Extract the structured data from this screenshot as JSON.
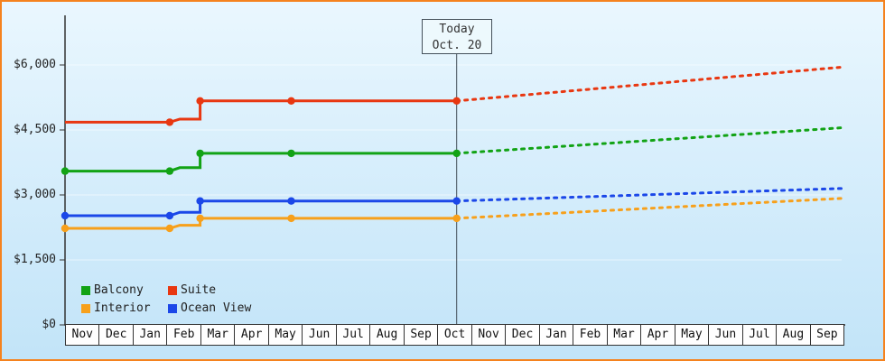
{
  "chart_data": {
    "type": "line",
    "title": "",
    "xlabel": "",
    "ylabel": "",
    "grid": true,
    "legend_position": "bottom-left-inside",
    "y_ticks": [
      0,
      1500,
      3000,
      4500,
      6000
    ],
    "y_tick_labels": [
      "$0",
      "$1,500",
      "$3,000",
      "$4,500",
      "$6,000"
    ],
    "ylim": [
      0,
      6000
    ],
    "x_months": [
      "Nov",
      "Dec",
      "Jan",
      "Feb",
      "Mar",
      "Apr",
      "May",
      "Jun",
      "Jul",
      "Aug",
      "Sep",
      "Oct",
      "Nov",
      "Dec",
      "Jan",
      "Feb",
      "Mar",
      "Apr",
      "May",
      "Jun",
      "Jul",
      "Aug",
      "Sep"
    ],
    "today": {
      "line1": "Today",
      "line2": "Oct. 20",
      "month_index": 11.6
    },
    "series": [
      {
        "name": "Balcony",
        "color": "#12a315",
        "solid": [
          [
            0,
            3550
          ],
          [
            3.1,
            3550
          ],
          [
            3.4,
            3630
          ],
          [
            4.0,
            3630
          ],
          [
            4.0,
            3960
          ],
          [
            11.6,
            3960
          ]
        ],
        "dashed": [
          [
            11.6,
            3960
          ],
          [
            23,
            4550
          ]
        ],
        "markers": [
          [
            0,
            3550
          ],
          [
            3.1,
            3550
          ],
          [
            4.0,
            3960
          ],
          [
            6.7,
            3960
          ],
          [
            11.6,
            3960
          ]
        ]
      },
      {
        "name": "Suite",
        "color": "#e83711",
        "solid": [
          [
            0,
            4680
          ],
          [
            3.1,
            4680
          ],
          [
            3.4,
            4750
          ],
          [
            4.0,
            4750
          ],
          [
            4.0,
            5170
          ],
          [
            11.6,
            5170
          ]
        ],
        "dashed": [
          [
            11.6,
            5170
          ],
          [
            23,
            5950
          ]
        ],
        "markers": [
          [
            3.1,
            4680
          ],
          [
            4.0,
            5170
          ],
          [
            6.7,
            5170
          ],
          [
            11.6,
            5170
          ]
        ]
      },
      {
        "name": "Interior",
        "color": "#f7a01b",
        "solid": [
          [
            0,
            2230
          ],
          [
            3.1,
            2230
          ],
          [
            3.4,
            2300
          ],
          [
            4.0,
            2300
          ],
          [
            4.0,
            2460
          ],
          [
            11.6,
            2460
          ]
        ],
        "dashed": [
          [
            11.6,
            2460
          ],
          [
            23,
            2920
          ]
        ],
        "markers": [
          [
            0,
            2230
          ],
          [
            3.1,
            2230
          ],
          [
            4.0,
            2460
          ],
          [
            6.7,
            2460
          ],
          [
            11.6,
            2460
          ]
        ]
      },
      {
        "name": "Ocean View",
        "color": "#1b47e8",
        "solid": [
          [
            0,
            2520
          ],
          [
            3.1,
            2520
          ],
          [
            3.4,
            2600
          ],
          [
            4.0,
            2600
          ],
          [
            4.0,
            2860
          ],
          [
            11.6,
            2860
          ]
        ],
        "dashed": [
          [
            11.6,
            2860
          ],
          [
            23,
            3150
          ]
        ],
        "markers": [
          [
            0,
            2520
          ],
          [
            3.1,
            2520
          ],
          [
            4.0,
            2860
          ],
          [
            6.7,
            2860
          ],
          [
            11.6,
            2860
          ]
        ]
      }
    ],
    "legend": [
      {
        "label": "Balcony",
        "color": "#12a315"
      },
      {
        "label": "Suite",
        "color": "#e83711"
      },
      {
        "label": "Interior",
        "color": "#f7a01b"
      },
      {
        "label": "Ocean View",
        "color": "#1b47e8"
      }
    ]
  }
}
